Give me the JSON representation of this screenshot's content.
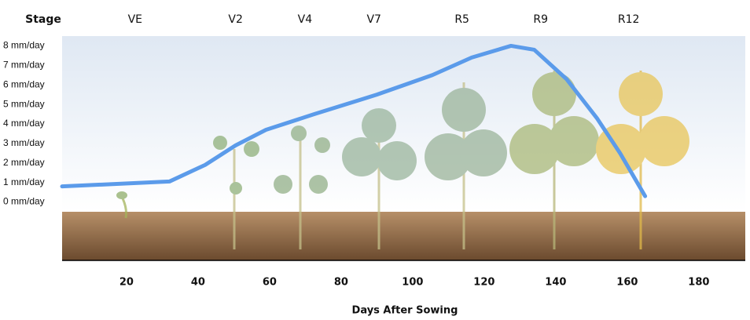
{
  "chart_data": {
    "type": "line",
    "stage_title": "Stage",
    "stages": {
      "labels": [
        "VE",
        "V2",
        "V4",
        "V7",
        "R5",
        "R9",
        "R12"
      ],
      "x": [
        22.4,
        50.5,
        69.9,
        89.2,
        113.8,
        135.8,
        160.4
      ]
    },
    "x_label": "Days After Sowing",
    "x": [
      2,
      32,
      42,
      50.5,
      59,
      72.5,
      90,
      105.5,
      116.5,
      127.5,
      134,
      143,
      151.5,
      158,
      165
    ],
    "series": [
      {
        "color": "#5b9bea",
        "values": [
          0.8,
          1.05,
          1.9,
          2.9,
          3.7,
          4.5,
          5.5,
          6.5,
          7.4,
          8.0,
          7.8,
          6.3,
          4.3,
          2.5,
          0.3
        ]
      }
    ],
    "xlim": [
      2,
      193
    ],
    "xticks": [
      20,
      40,
      60,
      80,
      100,
      120,
      140,
      160,
      180
    ],
    "ylim": [
      -0.5,
      8.5
    ],
    "yticks": [
      {
        "value": 0,
        "label": "0 mm/day"
      },
      {
        "value": 1,
        "label": "1 mm/day"
      },
      {
        "value": 2,
        "label": "2 mm/day"
      },
      {
        "value": 3,
        "label": "3 mm/day"
      },
      {
        "value": 4,
        "label": "4 mm/day"
      },
      {
        "value": 5,
        "label": "5 mm/day"
      },
      {
        "value": 6,
        "label": "6 mm/day"
      },
      {
        "value": 7,
        "label": "7 mm/day"
      },
      {
        "value": 8,
        "label": "8 mm/day"
      }
    ]
  }
}
